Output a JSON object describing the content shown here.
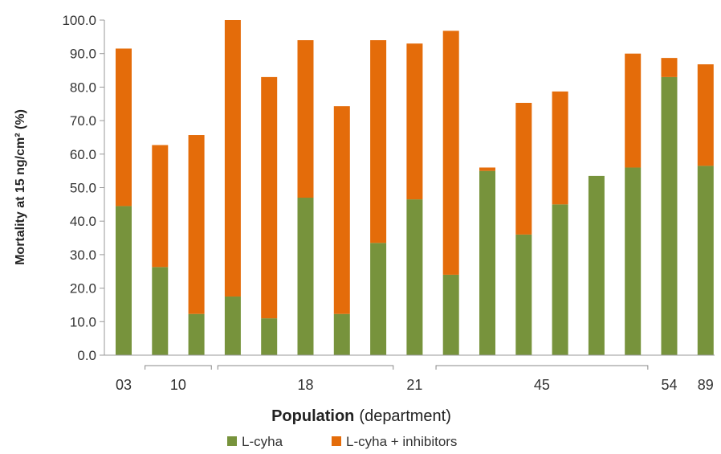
{
  "chart_data": {
    "type": "bar",
    "stacked": true,
    "xlabel": {
      "bold": "Population",
      "normal": "(department)"
    },
    "ylabel": "Mortality at 15 ng/cm² (%)",
    "ylim": [
      0,
      100
    ],
    "yticks": [
      "0.0",
      "10.0",
      "20.0",
      "30.0",
      "40.0",
      "50.0",
      "60.0",
      "70.0",
      "80.0",
      "90.0",
      "100.0"
    ],
    "groups": [
      {
        "label": "03",
        "bars": [
          0
        ]
      },
      {
        "label": "10",
        "bars": [
          1,
          2
        ]
      },
      {
        "label": "18",
        "bars": [
          3,
          4,
          5,
          6,
          7
        ]
      },
      {
        "label": "21",
        "bars": [
          8
        ]
      },
      {
        "label": "45",
        "bars": [
          9,
          10,
          11,
          12,
          13,
          14
        ]
      },
      {
        "label": "54",
        "bars": [
          15
        ]
      },
      {
        "label": "89",
        "bars": [
          16
        ]
      }
    ],
    "series": [
      {
        "name": "L-cyha",
        "color": "#77933c",
        "values": [
          44.5,
          26.3,
          12.3,
          17.5,
          11.0,
          47.0,
          12.3,
          33.5,
          46.5,
          24.0,
          55.0,
          36.0,
          45.0,
          53.5,
          56.0,
          83.0,
          56.5
        ]
      },
      {
        "name": "L-cyha + inhibitors",
        "color": "#e46c0a",
        "totals": [
          91.5,
          62.7,
          65.7,
          100.0,
          83.0,
          94.0,
          74.3,
          94.0,
          93.0,
          96.8,
          56.0,
          75.3,
          78.7,
          53.5,
          90.0,
          88.7,
          86.8
        ]
      }
    ],
    "legend_position": "bottom"
  }
}
